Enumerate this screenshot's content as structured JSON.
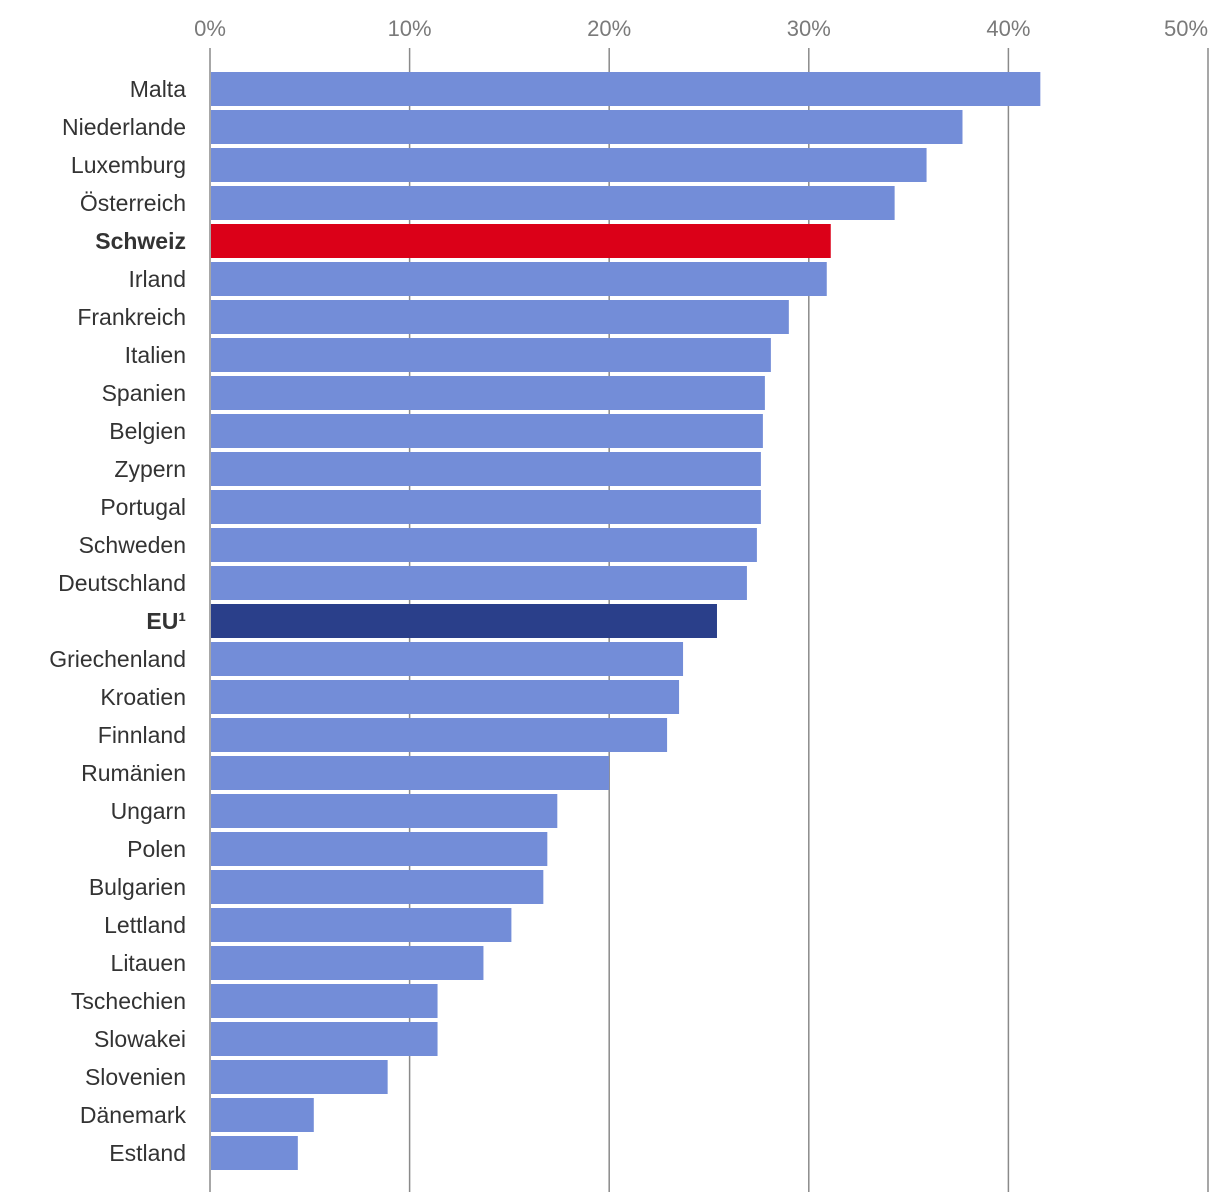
{
  "chart_data": {
    "type": "bar",
    "orientation": "horizontal",
    "title": "",
    "xlabel": "",
    "ylabel": "",
    "xlim": [
      0,
      50
    ],
    "x_ticks": [
      "0%",
      "10%",
      "20%",
      "30%",
      "40%",
      "50%"
    ],
    "grid": true,
    "colors": {
      "default": "#738dd8",
      "Schweiz": "#db0018",
      "EU1": "#2a3f8a"
    },
    "categories": [
      "Malta",
      "Niederlande",
      "Luxemburg",
      "Österreich",
      "Schweiz",
      "Irland",
      "Frankreich",
      "Italien",
      "Spanien",
      "Belgien",
      "Zypern",
      "Portugal",
      "Schweden",
      "Deutschland",
      "EU¹",
      "Griechenland",
      "Kroatien",
      "Finnland",
      "Rumänien",
      "Ungarn",
      "Polen",
      "Bulgarien",
      "Lettland",
      "Litauen",
      "Tschechien",
      "Slowakei",
      "Slovenien",
      "Dänemark",
      "Estland"
    ],
    "values": [
      41.6,
      37.7,
      35.9,
      34.3,
      31.1,
      30.9,
      29.0,
      28.1,
      27.8,
      27.7,
      27.6,
      27.6,
      27.4,
      26.9,
      25.4,
      23.7,
      23.5,
      22.9,
      20.0,
      17.4,
      16.9,
      16.7,
      15.1,
      13.7,
      11.4,
      11.4,
      8.9,
      5.2,
      4.4
    ],
    "highlight": {
      "Schweiz": "bold",
      "EU¹": "bold"
    }
  }
}
